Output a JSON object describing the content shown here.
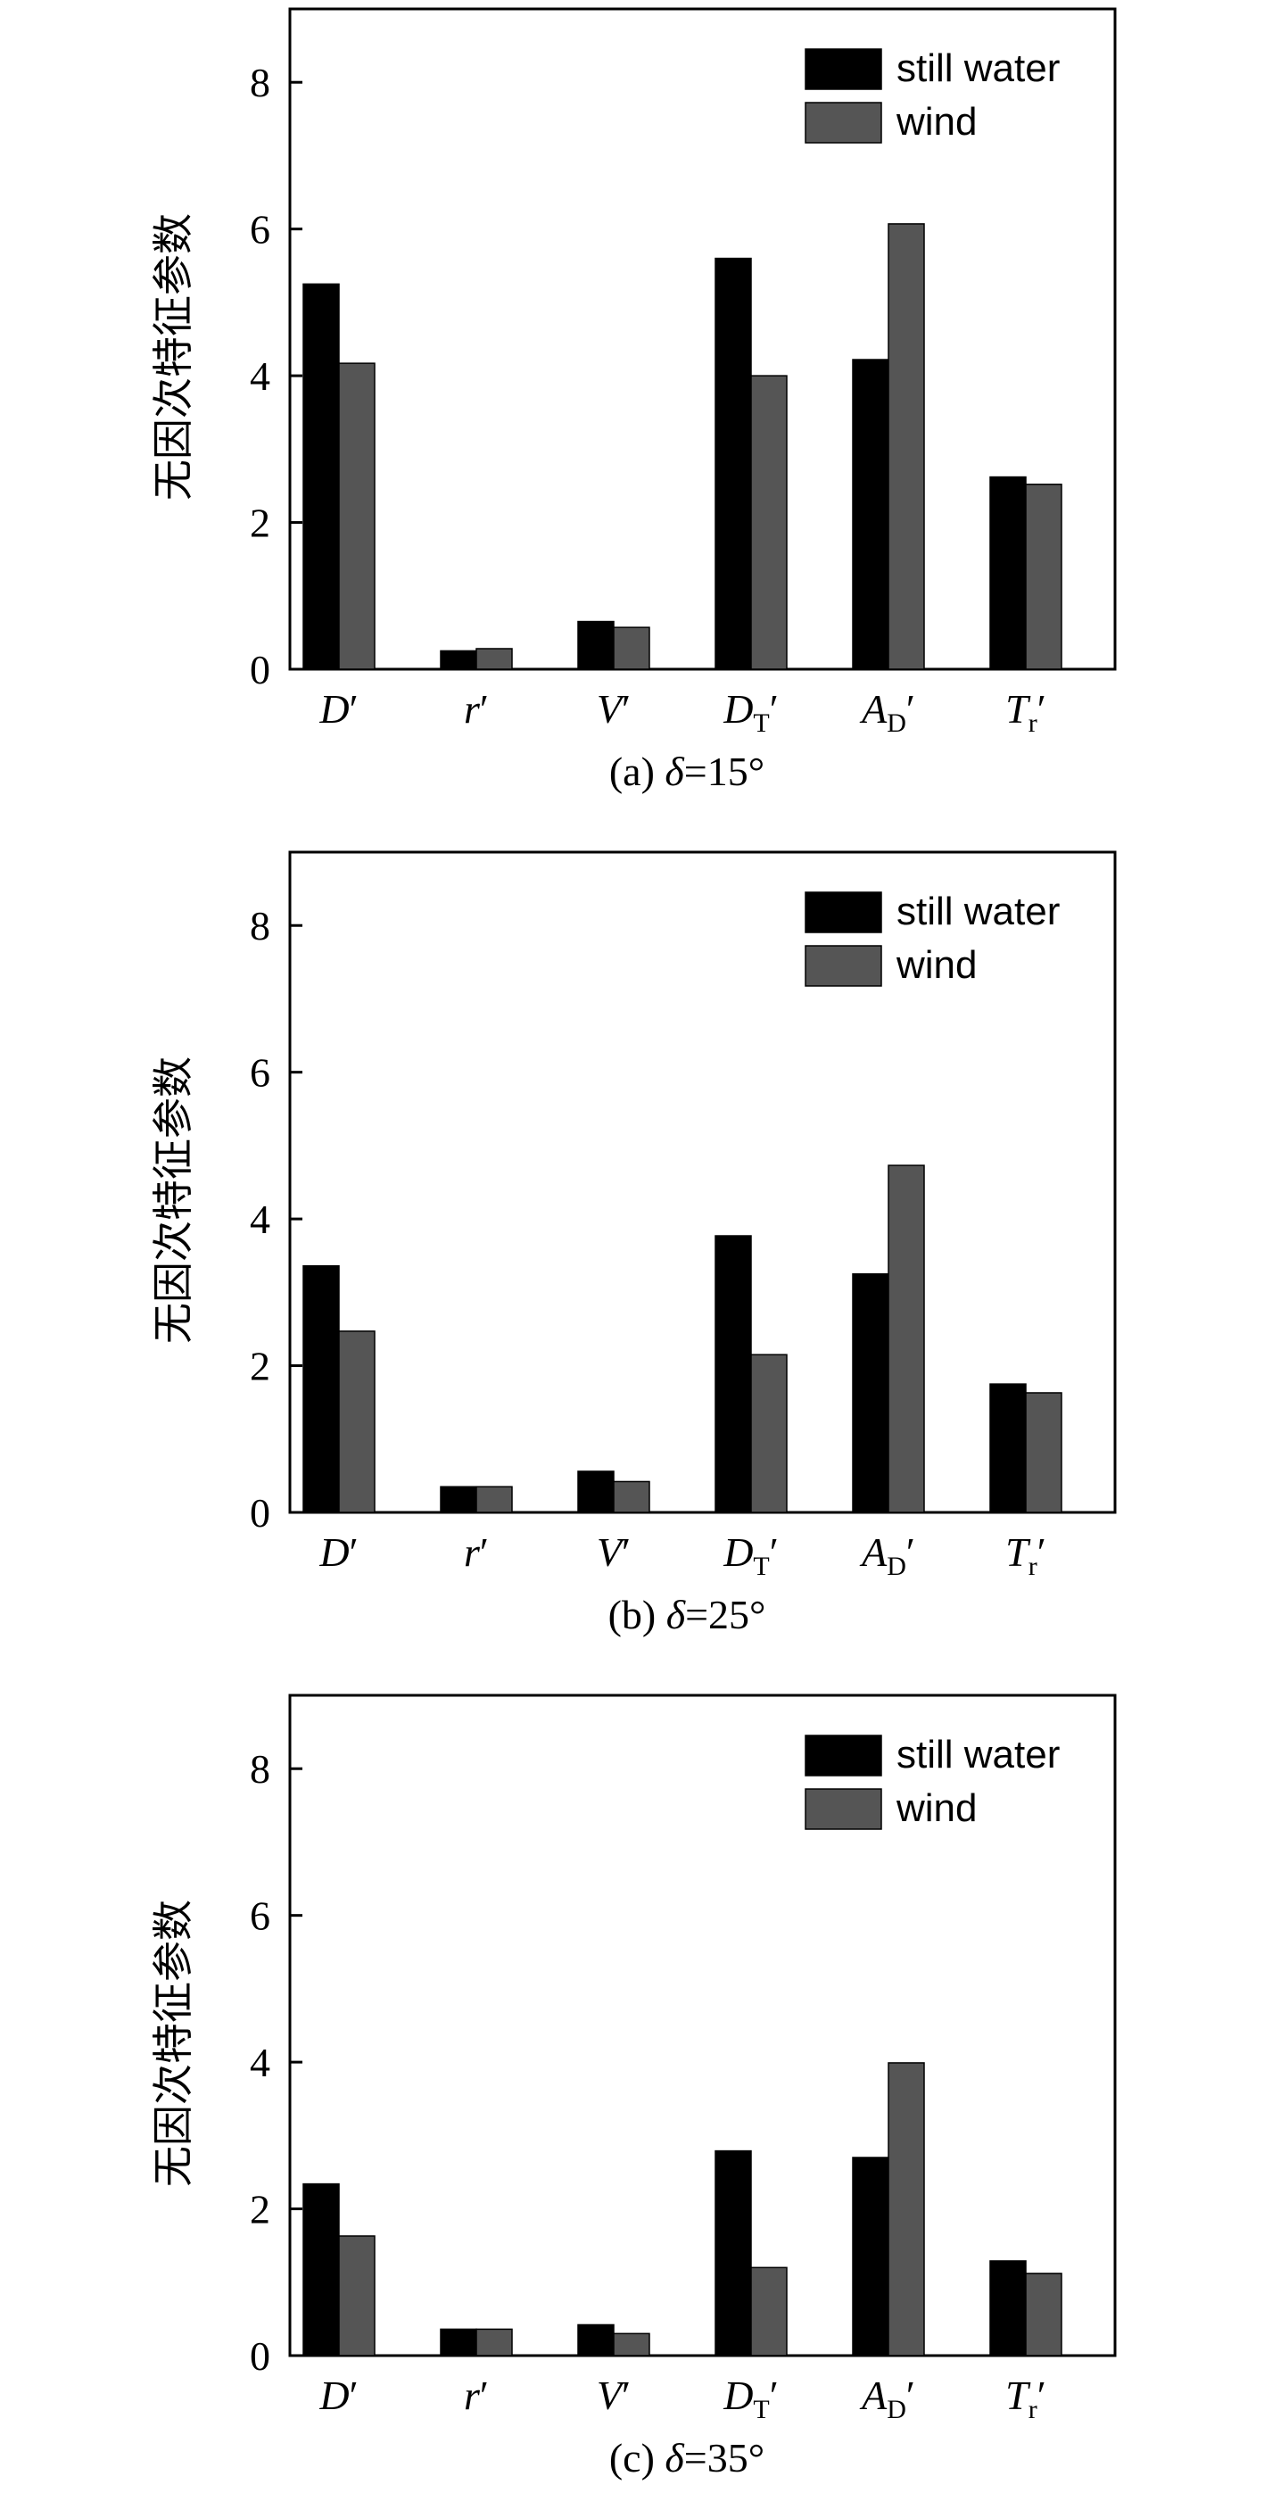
{
  "chart_data": [
    {
      "type": "bar",
      "caption": "(a) δ=15°",
      "caption_parts": {
        "prefix": "(a) ",
        "symbol": "δ",
        "suffix": "=15°"
      },
      "ylabel": "无因次特征参数",
      "ylim": [
        0,
        9
      ],
      "yticks": [
        "0",
        "2",
        "4",
        "6",
        "8"
      ],
      "ytick_values": [
        0,
        2,
        4,
        6,
        8
      ],
      "categories": [
        {
          "main": "D",
          "sub": "",
          "prime": "′"
        },
        {
          "main": "r",
          "sub": "",
          "prime": "′"
        },
        {
          "main": "V",
          "sub": "",
          "prime": "′"
        },
        {
          "main": "D",
          "sub": "T",
          "prime": "′"
        },
        {
          "main": "A",
          "sub": "D",
          "prime": "′"
        },
        {
          "main": "T",
          "sub": "r",
          "prime": "′"
        }
      ],
      "series": [
        {
          "name": "still water",
          "color": "#000000",
          "values": [
            5.25,
            0.25,
            0.65,
            5.6,
            4.22,
            2.62
          ]
        },
        {
          "name": "wind",
          "color": "#555555",
          "values": [
            4.17,
            0.28,
            0.57,
            4.0,
            6.07,
            2.52
          ]
        }
      ],
      "legend": "top-right"
    },
    {
      "type": "bar",
      "caption": "(b) δ=25°",
      "caption_parts": {
        "prefix": "(b) ",
        "symbol": "δ",
        "suffix": "=25°"
      },
      "ylabel": "无因次特征参数",
      "ylim": [
        0,
        9
      ],
      "yticks": [
        "0",
        "2",
        "4",
        "6",
        "8"
      ],
      "ytick_values": [
        0,
        2,
        4,
        6,
        8
      ],
      "categories": [
        {
          "main": "D",
          "sub": "",
          "prime": "′"
        },
        {
          "main": "r",
          "sub": "",
          "prime": "′"
        },
        {
          "main": "V",
          "sub": "",
          "prime": "′"
        },
        {
          "main": "D",
          "sub": "T",
          "prime": "′"
        },
        {
          "main": "A",
          "sub": "D",
          "prime": "′"
        },
        {
          "main": "T",
          "sub": "r",
          "prime": "′"
        }
      ],
      "series": [
        {
          "name": "still water",
          "color": "#000000",
          "values": [
            3.36,
            0.35,
            0.56,
            3.77,
            3.25,
            1.75
          ]
        },
        {
          "name": "wind",
          "color": "#555555",
          "values": [
            2.47,
            0.35,
            0.42,
            2.15,
            4.73,
            1.63
          ]
        }
      ],
      "legend": "top-right"
    },
    {
      "type": "bar",
      "caption": "(c) δ=35°",
      "caption_parts": {
        "prefix": "(c) ",
        "symbol": "δ",
        "suffix": "=35°"
      },
      "ylabel": "无因次特征参数",
      "ylim": [
        0,
        9
      ],
      "yticks": [
        "0",
        "2",
        "4",
        "6",
        "8"
      ],
      "ytick_values": [
        0,
        2,
        4,
        6,
        8
      ],
      "categories": [
        {
          "main": "D",
          "sub": "",
          "prime": "′"
        },
        {
          "main": "r",
          "sub": "",
          "prime": "′"
        },
        {
          "main": "V",
          "sub": "",
          "prime": "′"
        },
        {
          "main": "D",
          "sub": "T",
          "prime": "′"
        },
        {
          "main": "A",
          "sub": "D",
          "prime": "′"
        },
        {
          "main": "T",
          "sub": "r",
          "prime": "′"
        }
      ],
      "series": [
        {
          "name": "still water",
          "color": "#000000",
          "values": [
            2.34,
            0.36,
            0.42,
            2.79,
            2.7,
            1.29
          ]
        },
        {
          "name": "wind",
          "color": "#555555",
          "values": [
            1.63,
            0.36,
            0.3,
            1.2,
            3.99,
            1.12
          ]
        }
      ],
      "legend": "top-right"
    }
  ]
}
